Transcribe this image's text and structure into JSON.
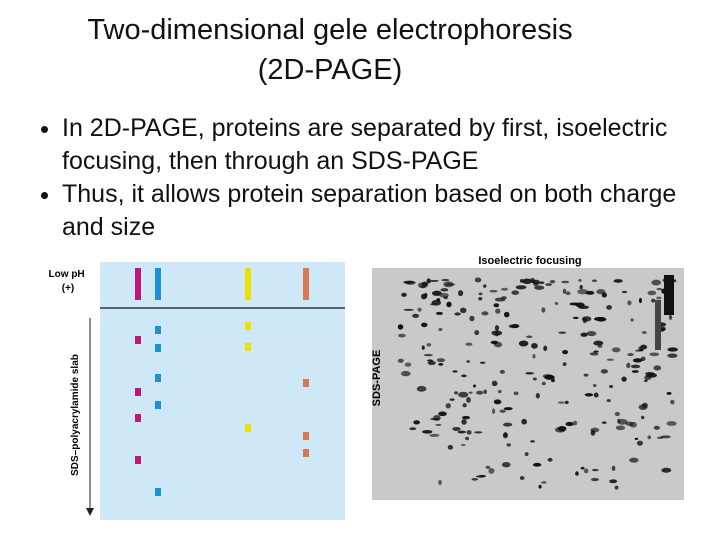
{
  "slide": {
    "title": [
      "Two-dimensional gele electrophoresis",
      "(2D-PAGE)"
    ],
    "bullets": [
      "In 2D-PAGE, proteins are separated by first, isoelectric focusing, then through an SDS-PAGE",
      "Thus, it allows protein separation based on both charge and size"
    ]
  },
  "figure": {
    "left_panel": {
      "top_label": "Low pH (+)",
      "side_label": "SDS–polyacrylamide slab"
    },
    "gel": {
      "top_label": "Isoelectric focusing",
      "side_label": "SDS-PAGE"
    }
  }
}
